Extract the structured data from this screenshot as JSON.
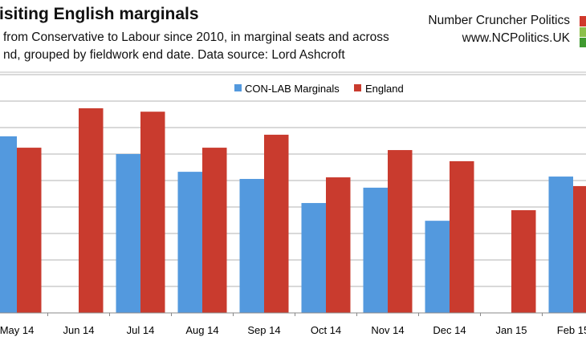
{
  "header": {
    "title": "isiting English marginals",
    "subtitle_line1": "from Conservative to Labour since 2010, in marginal seats and across",
    "subtitle_line2": "nd, grouped by fieldwork end date. Data source: Lord Ashcroft"
  },
  "brand": {
    "name": "Number Cruncher Politics",
    "url": "www.NCPolitics.UK",
    "colors": [
      "#d0382b",
      "#8cc04a",
      "#3f9a2f"
    ]
  },
  "chart_data": {
    "type": "bar",
    "title": "",
    "xlabel": "",
    "ylabel": "",
    "grid": true,
    "legend_position": "top-center",
    "ylim": [
      0,
      9
    ],
    "categories": [
      "May 14",
      "Jun 14",
      "Jul 14",
      "Aug 14",
      "Sep 14",
      "Oct 14",
      "Nov 14",
      "Dec 14",
      "Jan 15",
      "Feb 15"
    ],
    "series": [
      {
        "name": "CON-LAB Marginals",
        "color": "#5399de",
        "values": [
          6.67,
          null,
          6.0,
          5.33,
          5.06,
          4.15,
          4.73,
          3.48,
          null,
          5.15
        ]
      },
      {
        "name": "England",
        "color": "#c93b2e",
        "values": [
          6.24,
          7.73,
          7.6,
          6.24,
          6.73,
          5.12,
          6.15,
          5.73,
          3.88,
          4.79
        ]
      }
    ]
  }
}
